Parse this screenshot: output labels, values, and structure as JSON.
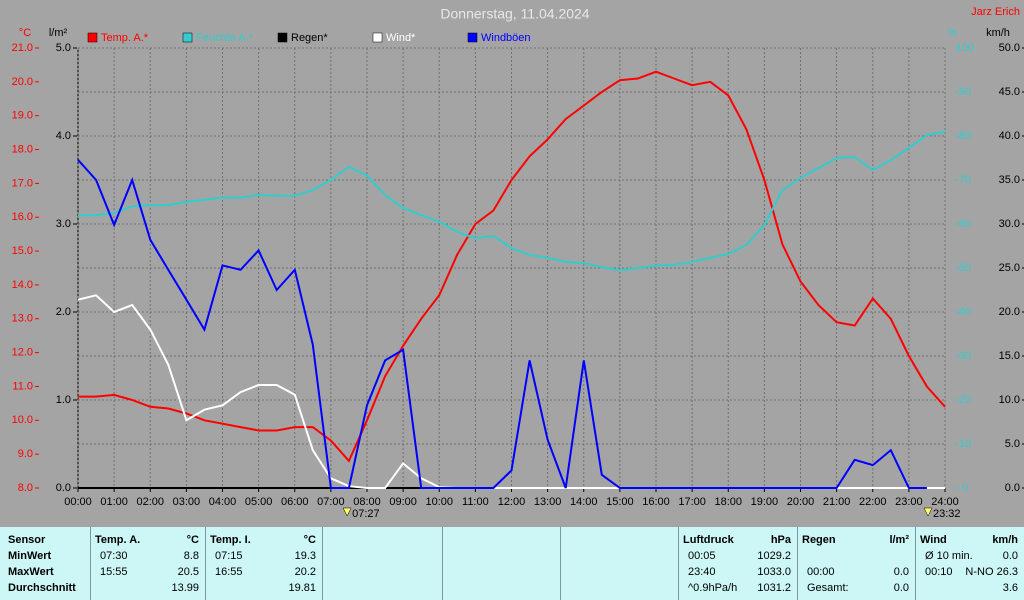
{
  "chart_data": {
    "type": "line",
    "title": "Donnerstag, 11.04.2024",
    "author": "Jarz Erich",
    "y_label": "°C",
    "y2_label": "l/m²",
    "y3_label": "%",
    "y4_label": "km/h",
    "xlim": [
      0,
      24
    ],
    "xticks": [
      {
        "value": 0,
        "label": "00:00"
      },
      {
        "value": 1,
        "label": "01:00"
      },
      {
        "value": 2,
        "label": "02:00"
      },
      {
        "value": 3,
        "label": "03:00"
      },
      {
        "value": 4,
        "label": "04:00"
      },
      {
        "value": 5,
        "label": "05:00"
      },
      {
        "value": 6,
        "label": "06:00"
      },
      {
        "value": 7,
        "label": "07:00"
      },
      {
        "value": 8,
        "label": "08:00"
      },
      {
        "value": 9,
        "label": "09:00"
      },
      {
        "value": 10,
        "label": "10:00"
      },
      {
        "value": 11,
        "label": "11:00"
      },
      {
        "value": 12,
        "label": "12:00"
      },
      {
        "value": 13,
        "label": "13:00"
      },
      {
        "value": 14,
        "label": "14:00"
      },
      {
        "value": 15,
        "label": "15:00"
      },
      {
        "value": 16,
        "label": "16:00"
      },
      {
        "value": 17,
        "label": "17:00"
      },
      {
        "value": 18,
        "label": "18:00"
      },
      {
        "value": 19,
        "label": "19:00"
      },
      {
        "value": 20,
        "label": "20:00"
      },
      {
        "value": 21,
        "label": "21:00"
      },
      {
        "value": 22,
        "label": "22:00"
      },
      {
        "value": 23,
        "label": "23:00"
      },
      {
        "value": 24,
        "label": "24:00"
      }
    ],
    "ylim": [
      8,
      21
    ],
    "yticks": [
      {
        "value": 8,
        "label": "8.0"
      },
      {
        "value": 9,
        "label": "9.0"
      },
      {
        "value": 10,
        "label": "10.0"
      },
      {
        "value": 11,
        "label": "11.0"
      },
      {
        "value": 12,
        "label": "12.0"
      },
      {
        "value": 13,
        "label": "13.0"
      },
      {
        "value": 14,
        "label": "14.0"
      },
      {
        "value": 15,
        "label": "15.0"
      },
      {
        "value": 16,
        "label": "16.0"
      },
      {
        "value": 17,
        "label": "17.0"
      },
      {
        "value": 18,
        "label": "18.0"
      },
      {
        "value": 19,
        "label": "19.0"
      },
      {
        "value": 20,
        "label": "20.0"
      },
      {
        "value": 21,
        "label": "21.0"
      }
    ],
    "y2lim": [
      0,
      5
    ],
    "y2ticks": [
      {
        "value": 0,
        "label": "0.0"
      },
      {
        "value": 1,
        "label": "1.0"
      },
      {
        "value": 2,
        "label": "2.0"
      },
      {
        "value": 3,
        "label": "3.0"
      },
      {
        "value": 4,
        "label": "4.0"
      },
      {
        "value": 5,
        "label": "5.0"
      }
    ],
    "y3lim": [
      0,
      100
    ],
    "y3ticks": [
      0,
      10,
      20,
      30,
      40,
      50,
      60,
      70,
      80,
      90,
      100
    ],
    "y4lim": [
      0,
      50
    ],
    "y4ticks": [
      {
        "value": 0,
        "label": "0.0"
      },
      {
        "value": 5,
        "label": "5.0"
      },
      {
        "value": 10,
        "label": "10.0"
      },
      {
        "value": 15,
        "label": "15.0"
      },
      {
        "value": 20,
        "label": "20.0"
      },
      {
        "value": 25,
        "label": "25.0"
      },
      {
        "value": 30,
        "label": "30.0"
      },
      {
        "value": 35,
        "label": "35.0"
      },
      {
        "value": 40,
        "label": "40.0"
      },
      {
        "value": 45,
        "label": "45.0"
      },
      {
        "value": 50,
        "label": "50.0"
      }
    ],
    "grid": true,
    "x": [
      0,
      0.5,
      1,
      1.5,
      2,
      2.5,
      3,
      3.5,
      4,
      4.5,
      5,
      5.5,
      6,
      6.5,
      7,
      7.5,
      8,
      8.5,
      9,
      9.5,
      10,
      10.5,
      11,
      11.5,
      12,
      12.5,
      13,
      13.5,
      14,
      14.5,
      15,
      15.5,
      16,
      16.5,
      17,
      17.5,
      18,
      18.5,
      19,
      19.5,
      20,
      20.5,
      21,
      21.5,
      22,
      22.5,
      23,
      23.5,
      24
    ],
    "series": [
      {
        "name": "Temp. A.*",
        "color": "#ff0000",
        "axis": "y",
        "values": [
          10.7,
          10.7,
          10.75,
          10.6,
          10.4,
          10.35,
          10.2,
          10.0,
          9.9,
          9.8,
          9.7,
          9.7,
          9.8,
          9.8,
          9.4,
          8.8,
          10.0,
          11.3,
          12.2,
          13.0,
          13.7,
          14.9,
          15.8,
          16.2,
          17.1,
          17.8,
          18.3,
          18.9,
          19.3,
          19.7,
          20.05,
          20.1,
          20.3,
          20.1,
          19.9,
          20.0,
          19.6,
          18.6,
          17.1,
          15.2,
          14.1,
          13.4,
          12.9,
          12.8,
          13.6,
          13.0,
          11.9,
          11.0,
          10.4
        ]
      },
      {
        "name": "Feuchte A.*",
        "color": "#33cccc",
        "axis": "y3",
        "values": [
          62,
          62,
          62.5,
          64,
          64.3,
          64.3,
          65,
          65.5,
          66,
          66,
          66.6,
          66.4,
          66.4,
          67.7,
          70,
          73,
          71,
          66.6,
          63.6,
          62,
          60.5,
          58.2,
          56.8,
          57.3,
          54.5,
          53,
          52.3,
          51.4,
          51.1,
          50.2,
          49.5,
          50,
          50.5,
          50.7,
          51.4,
          52.3,
          53.2,
          55.2,
          59.8,
          67.7,
          70.5,
          72.7,
          75,
          75.2,
          72.3,
          74.5,
          77.3,
          80.2,
          81
        ]
      },
      {
        "name": "Regen*",
        "color": "#000000",
        "axis": "y2",
        "values": [
          0,
          0,
          0,
          0,
          0,
          0,
          0,
          0,
          0,
          0,
          0,
          0,
          0,
          0,
          0,
          0,
          0,
          0,
          0,
          0,
          0,
          0,
          0,
          0,
          0,
          0,
          0,
          0,
          0,
          0,
          0,
          0,
          0,
          0,
          0,
          0,
          0,
          0,
          0,
          0,
          0,
          0,
          0,
          0,
          0,
          0,
          0,
          0,
          0
        ]
      },
      {
        "name": "Wind*",
        "color": "#ffffff",
        "axis": "y4",
        "values": [
          21.4,
          21.9,
          20,
          20.8,
          18,
          14,
          7.7,
          8.9,
          9.4,
          10.9,
          11.7,
          11.7,
          10.6,
          4.3,
          1.1,
          0.2,
          0,
          0,
          2.8,
          1.1,
          0.1,
          0,
          0,
          0,
          0,
          0,
          0,
          0,
          0,
          0,
          0,
          0,
          0,
          0,
          0,
          0,
          0,
          0,
          0,
          0,
          0,
          0,
          0,
          0,
          0,
          0,
          0,
          0,
          0
        ]
      },
      {
        "name": "Windböen",
        "color": "#0000ff",
        "axis": "y4",
        "values": [
          37.3,
          35,
          29.9,
          35,
          28.2,
          24.8,
          21.4,
          18,
          25.3,
          24.8,
          27,
          22.5,
          24.8,
          16.3,
          0,
          0,
          9.4,
          14.5,
          15.7,
          0,
          0,
          0,
          0,
          0,
          2,
          14.5,
          5.5,
          0,
          14.5,
          1.5,
          0,
          0,
          0,
          0,
          0,
          0,
          0,
          0,
          0,
          0,
          0,
          0,
          0,
          3.2,
          2.6,
          4.3,
          0,
          0,
          null
        ]
      }
    ],
    "annotations": [
      {
        "x": 7.45,
        "text": "07:27"
      },
      {
        "x": 23.53,
        "text": "23:32"
      }
    ]
  },
  "table": {
    "sensor_header": "Sensor",
    "columns": [
      {
        "header": "Temp. A.",
        "unit": "°C"
      },
      {
        "header": "Temp. I.",
        "unit": "°C"
      },
      {
        "header": "Luftdruck",
        "unit": "hPa"
      },
      {
        "header": "Regen",
        "unit": "l/m²"
      },
      {
        "header": "Wind",
        "unit": "km/h"
      }
    ],
    "rows": [
      {
        "label": "MinWert",
        "cells": [
          [
            "07:30",
            "8.8"
          ],
          [
            "07:15",
            "19.3"
          ],
          [
            "00:05",
            "1029.2"
          ],
          null,
          [
            "Ø 10 min.",
            "0.0"
          ]
        ]
      },
      {
        "label": "MaxWert",
        "cells": [
          [
            "15:55",
            "20.5"
          ],
          [
            "16:55",
            "20.2"
          ],
          [
            "23:40",
            "1033.0"
          ],
          [
            "00:00",
            "0.0"
          ],
          [
            "00:10",
            "N-NO 26.3"
          ]
        ]
      },
      {
        "label": "Durchschnitt",
        "cells": [
          [
            null,
            "13.99"
          ],
          [
            null,
            "19.81"
          ],
          [
            "^0.9hPa/h",
            "1031.2"
          ],
          [
            "Gesamt:",
            "0.0"
          ],
          [
            null,
            "3.6"
          ]
        ]
      }
    ]
  }
}
